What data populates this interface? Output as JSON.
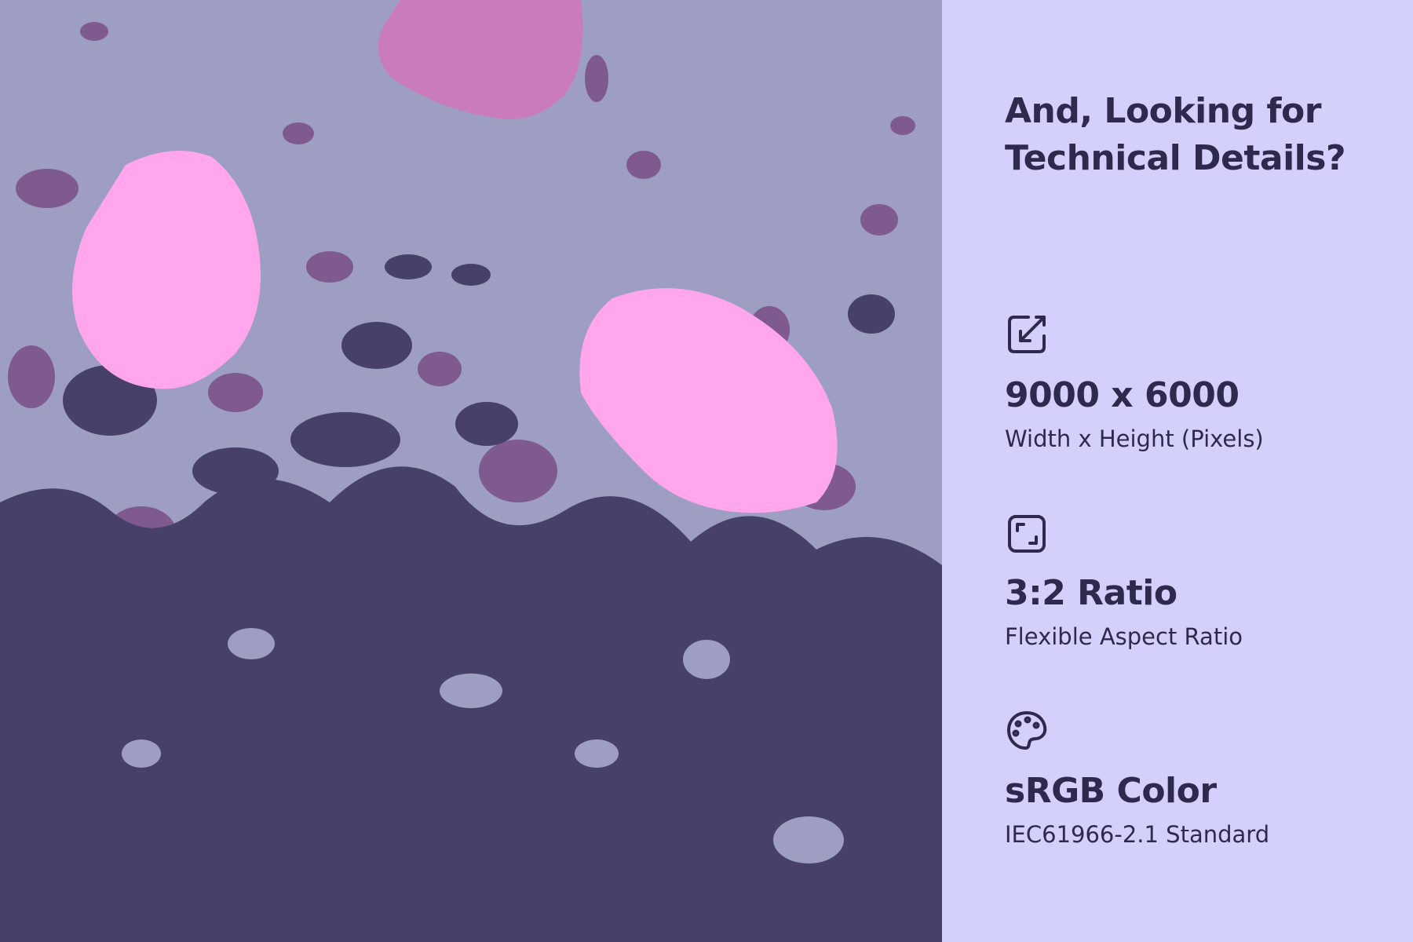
{
  "colors": {
    "panel_bg": "#d3d1fc",
    "text": "#2e2a4d",
    "art_bg": "#9e9dc4",
    "art_dark": "#47406b",
    "art_mid": "#7e5a91",
    "art_pink": "#ffa6ee",
    "art_magenta": "#c97bbd"
  },
  "panel": {
    "title_line1": "And, Looking for",
    "title_line2": "Technical Details?",
    "specs": [
      {
        "icon": "resize-arrow-icon",
        "heading": "9000 x 6000",
        "subtitle": "Width x Height (Pixels)"
      },
      {
        "icon": "aspect-ratio-icon",
        "heading": "3:2 Ratio",
        "subtitle": "Flexible Aspect Ratio"
      },
      {
        "icon": "palette-icon",
        "heading": "sRGB Color",
        "subtitle": "IEC61966-2.1 Standard"
      }
    ]
  }
}
